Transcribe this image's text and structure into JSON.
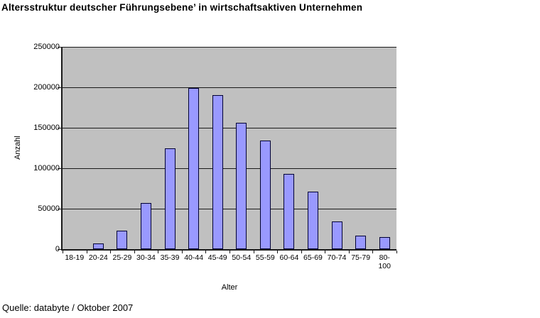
{
  "title": "Altersstruktur deutscher Führungsebene’ in wirtschaftsaktiven Unternehmen",
  "source": "Quelle: databyte / Oktober 2007",
  "colors": {
    "background": "#FFFFFF",
    "plot_bg": "#C0C0C0",
    "gridline": "#1A1A1A",
    "axis": "#1A1A1A",
    "bar_fill": "#9999FF",
    "bar_border": "#000033",
    "text": "#000000"
  },
  "chart_data": {
    "type": "bar",
    "title": "Altersstruktur deutscher Führungsebene’ in wirtschaftsaktiven Unternehmen",
    "xlabel": "Alter",
    "ylabel": "Anzahl",
    "categories": [
      "18-19",
      "20-24",
      "25-29",
      "30-34",
      "35-39",
      "40-44",
      "45-49",
      "50-54",
      "55-59",
      "60-64",
      "65-69",
      "70-74",
      "75-79",
      "80-100"
    ],
    "x_tick_display": [
      "18-19",
      "20-24",
      "25-29",
      "30-34",
      "35-39",
      "40-44",
      "45-49",
      "50-54",
      "55-59",
      "60-64",
      "65-69",
      "70-74",
      "75-79",
      "80-\n100"
    ],
    "values": [
      0,
      7000,
      23000,
      57000,
      125000,
      199000,
      190000,
      156000,
      134000,
      93000,
      71000,
      34000,
      17000,
      15000
    ],
    "ylim": [
      0,
      250000
    ],
    "y_ticks": [
      0,
      50000,
      100000,
      150000,
      200000,
      250000
    ],
    "y_tick_labels": [
      "0",
      "50000",
      "100000",
      "150000",
      "200000",
      "250000"
    ],
    "grid": true,
    "legend": false,
    "source": "Quelle: databyte / Oktober 2007"
  }
}
